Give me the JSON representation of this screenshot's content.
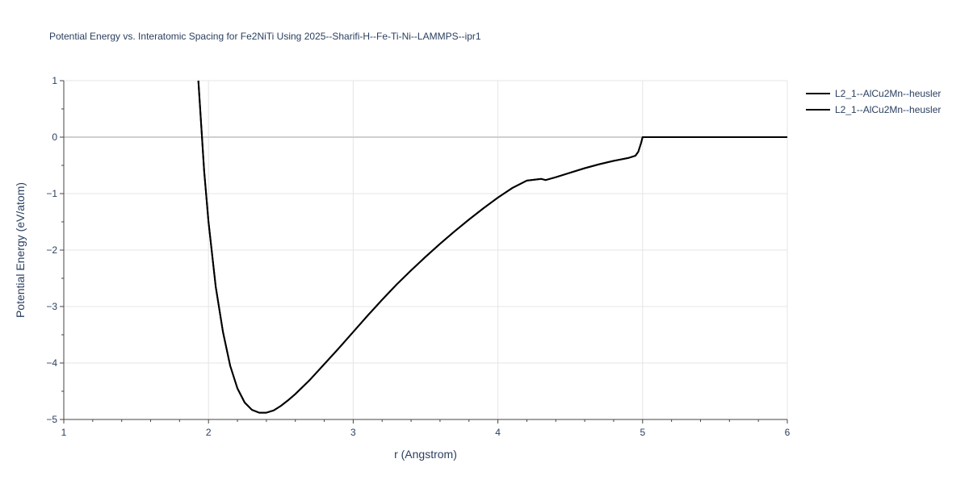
{
  "chart_data": {
    "type": "line",
    "title": "Potential Energy vs. Interatomic Spacing for Fe2NiTi Using 2025--Sharifi-H--Fe-Ti-Ni--LAMMPS--ipr1",
    "xlabel": "r (Angstrom)",
    "ylabel": "Potential Energy (eV/atom)",
    "xlim": [
      1,
      6
    ],
    "ylim": [
      -5,
      1
    ],
    "x_ticks": [
      "1",
      "2",
      "3",
      "4",
      "5",
      "6"
    ],
    "y_ticks": [
      "1",
      "0",
      "−1",
      "−2",
      "−3",
      "−4",
      "−5"
    ],
    "grid": true,
    "legend_position": "top-right",
    "line_color": "#000000",
    "series": [
      {
        "name": "L2_1--AlCu2Mn--heusler",
        "x": [
          1.93,
          1.95,
          1.97,
          2.0,
          2.05,
          2.1,
          2.15,
          2.2,
          2.25,
          2.3,
          2.35,
          2.4,
          2.45,
          2.5,
          2.55,
          2.6,
          2.7,
          2.8,
          2.9,
          3.0,
          3.1,
          3.2,
          3.3,
          3.4,
          3.5,
          3.6,
          3.7,
          3.8,
          3.9,
          4.0,
          4.1,
          4.2,
          4.3,
          4.33,
          4.4,
          4.5,
          4.6,
          4.7,
          4.8,
          4.9,
          4.95,
          4.97,
          4.99,
          5.0,
          5.5,
          6.0
        ],
        "y": [
          1.0,
          0.2,
          -0.6,
          -1.5,
          -2.65,
          -3.45,
          -4.05,
          -4.45,
          -4.7,
          -4.83,
          -4.88,
          -4.88,
          -4.84,
          -4.76,
          -4.66,
          -4.55,
          -4.3,
          -4.02,
          -3.74,
          -3.45,
          -3.16,
          -2.88,
          -2.61,
          -2.36,
          -2.12,
          -1.89,
          -1.67,
          -1.46,
          -1.26,
          -1.07,
          -0.9,
          -0.77,
          -0.74,
          -0.76,
          -0.71,
          -0.63,
          -0.55,
          -0.48,
          -0.42,
          -0.37,
          -0.33,
          -0.26,
          -0.1,
          0.0,
          0.0,
          0.0
        ]
      },
      {
        "name": "L2_1--AlCu2Mn--heusler",
        "x": [
          1.93,
          1.95,
          1.97,
          2.0,
          2.05,
          2.1,
          2.15,
          2.2,
          2.25,
          2.3,
          2.35,
          2.4,
          2.45,
          2.5,
          2.55,
          2.6,
          2.7,
          2.8,
          2.9,
          3.0,
          3.1,
          3.2,
          3.3,
          3.4,
          3.5,
          3.6,
          3.7,
          3.8,
          3.9,
          4.0,
          4.1,
          4.2,
          4.3,
          4.33,
          4.4,
          4.5,
          4.6,
          4.7,
          4.8,
          4.9,
          4.95,
          4.97,
          4.99,
          5.0,
          5.5,
          6.0
        ],
        "y": [
          1.0,
          0.2,
          -0.6,
          -1.5,
          -2.65,
          -3.45,
          -4.05,
          -4.45,
          -4.7,
          -4.83,
          -4.88,
          -4.88,
          -4.84,
          -4.76,
          -4.66,
          -4.55,
          -4.3,
          -4.02,
          -3.74,
          -3.45,
          -3.16,
          -2.88,
          -2.61,
          -2.36,
          -2.12,
          -1.89,
          -1.67,
          -1.46,
          -1.26,
          -1.07,
          -0.9,
          -0.77,
          -0.74,
          -0.76,
          -0.71,
          -0.63,
          -0.55,
          -0.48,
          -0.42,
          -0.37,
          -0.33,
          -0.26,
          -0.1,
          0.0,
          0.0,
          0.0
        ]
      }
    ]
  }
}
